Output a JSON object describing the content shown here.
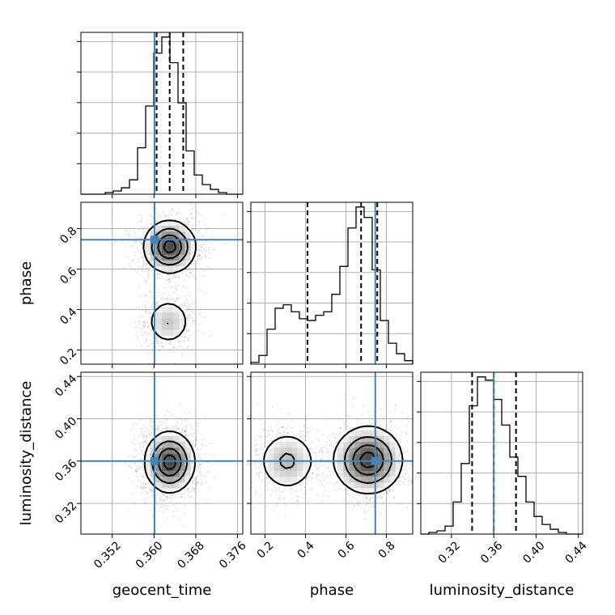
{
  "chart_data": {
    "type": "corner",
    "parameters": [
      {
        "name": "geocent_time",
        "range": [
          0.346,
          0.377
        ],
        "ticks": [
          0.352,
          0.36,
          0.368,
          0.376
        ],
        "tick_labels": [
          "0.352",
          "0.360",
          "0.368",
          "0.376"
        ],
        "truth": 0.3601,
        "quantiles": [
          0.3605,
          0.363,
          0.3656
        ],
        "hist_bin_width": 0.00155,
        "hist_counts": [
          0,
          0,
          0,
          1,
          2,
          4,
          9,
          29,
          55,
          88,
          98,
          82,
          57,
          27,
          12,
          6,
          3,
          1,
          0,
          0
        ]
      },
      {
        "name": "phase",
        "range": [
          0.13,
          0.93
        ],
        "ticks": [
          0.2,
          0.4,
          0.6,
          0.8
        ],
        "tick_labels": [
          "0.2",
          "0.4",
          "0.6",
          "0.8"
        ],
        "truth": 0.745,
        "quantiles": [
          0.41,
          0.675,
          0.755
        ],
        "hist_bin_width": 0.04,
        "hist_counts": [
          1,
          5,
          20,
          32,
          34,
          30,
          26,
          25,
          28,
          30,
          40,
          56,
          78,
          90,
          84,
          54,
          25,
          12,
          6,
          2
        ]
      },
      {
        "name": "luminosity_distance",
        "range": [
          0.291,
          0.444
        ],
        "ticks": [
          0.32,
          0.36,
          0.4,
          0.44
        ],
        "tick_labels": [
          "0.32",
          "0.36",
          "0.40",
          "0.44"
        ],
        "truth": 0.36,
        "quantiles": [
          0.3395,
          0.36,
          0.381
        ],
        "hist_bin_width": 0.0077,
        "hist_counts": [
          0,
          1,
          2,
          5,
          20,
          44,
          80,
          98,
          96,
          84,
          68,
          48,
          36,
          20,
          11,
          6,
          3,
          1,
          0,
          0
        ]
      }
    ],
    "density_2d": [
      {
        "x": "geocent_time",
        "y": "phase",
        "modes": [
          {
            "mx": 0.363,
            "my": 0.71,
            "sx": 0.0025,
            "sy": 0.065,
            "w": 1.0
          },
          {
            "mx": 0.3628,
            "my": 0.34,
            "sx": 0.0022,
            "sy": 0.06,
            "w": 0.4
          }
        ]
      },
      {
        "x": "geocent_time",
        "y": "luminosity_distance",
        "modes": [
          {
            "mx": 0.363,
            "my": 0.359,
            "sx": 0.0024,
            "sy": 0.0145,
            "w": 1.0
          }
        ]
      },
      {
        "x": "phase",
        "y": "luminosity_distance",
        "modes": [
          {
            "mx": 0.71,
            "my": 0.361,
            "sx": 0.085,
            "sy": 0.016,
            "w": 1.0
          },
          {
            "mx": 0.31,
            "my": 0.36,
            "sx": 0.075,
            "sy": 0.015,
            "w": 0.45
          }
        ]
      }
    ],
    "truth_color": "#4682b4",
    "grid": true,
    "title": "",
    "legend": "none"
  }
}
